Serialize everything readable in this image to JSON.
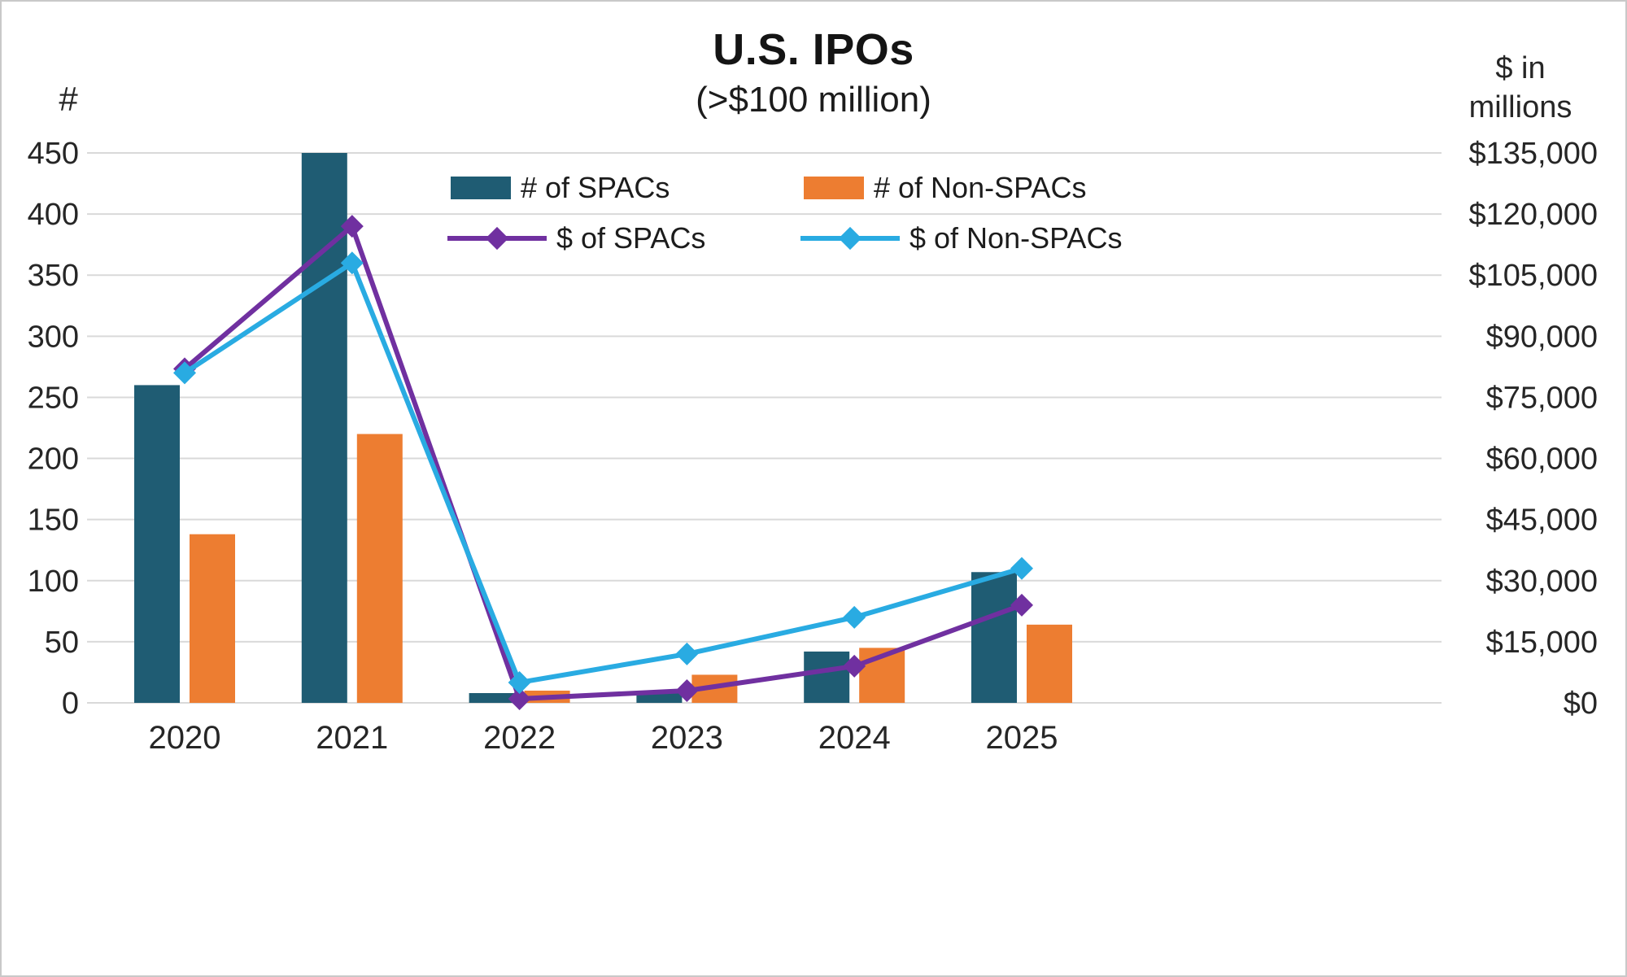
{
  "page": {
    "title": "U.S. IPOs",
    "subtitle": "(>$100 million)",
    "left_axis_unit": "#",
    "right_axis_unit_line1": "$ in",
    "right_axis_unit_line2": "millions"
  },
  "colors": {
    "spac_count": "#1f5c73",
    "nonspac_count": "#ed7d31",
    "spac_dollars": "#7030a0",
    "nonspac_dollars": "#29abe2",
    "gridline": "#d9d9d9",
    "text": "#262626",
    "border": "#c9c9c9"
  },
  "legend": {
    "items": [
      {
        "key": "spac_count",
        "style": "bar",
        "label": "# of SPACs"
      },
      {
        "key": "nonspac_count",
        "style": "bar",
        "label": "# of Non-SPACs"
      },
      {
        "key": "spac_dollars",
        "style": "line",
        "label": "$ of SPACs"
      },
      {
        "key": "nonspac_dollars",
        "style": "line",
        "label": "$ of Non-SPACs"
      }
    ]
  },
  "chart_data": {
    "type": "combo-bar-line-dual-axis",
    "title": "U.S. IPOs",
    "subtitle": "(>$100 million)",
    "categories": [
      "2020",
      "2021",
      "2022",
      "2023",
      "2024",
      "2025"
    ],
    "left_axis": {
      "label": "#",
      "min": 0,
      "max": 450,
      "step": 50,
      "ticks": [
        "0",
        "50",
        "100",
        "150",
        "200",
        "250",
        "300",
        "350",
        "400",
        "450"
      ]
    },
    "right_axis": {
      "label": "$ in millions",
      "min": 0,
      "max": 135000,
      "step": 15000,
      "ticks": [
        "$0",
        "$15,000",
        "$30,000",
        "$45,000",
        "$60,000",
        "$75,000",
        "$90,000",
        "$105,000",
        "$120,000",
        "$135,000"
      ]
    },
    "series": [
      {
        "key": "spac_count",
        "name": "# of SPACs",
        "type": "bar",
        "axis": "left",
        "values": [
          260,
          450,
          8,
          9,
          42,
          107
        ]
      },
      {
        "key": "nonspac_count",
        "name": "# of Non-SPACs",
        "type": "bar",
        "axis": "left",
        "values": [
          138,
          220,
          10,
          23,
          45,
          64
        ]
      },
      {
        "key": "spac_dollars",
        "name": "$ of SPACs",
        "type": "line",
        "axis": "right",
        "values": [
          82000,
          117000,
          1000,
          3000,
          9000,
          24000
        ]
      },
      {
        "key": "nonspac_dollars",
        "name": "$ of Non-SPACs",
        "type": "line",
        "axis": "right",
        "values": [
          81000,
          108000,
          5000,
          12000,
          21000,
          33000
        ]
      }
    ],
    "grid": true,
    "legend_position": "inside-top"
  }
}
